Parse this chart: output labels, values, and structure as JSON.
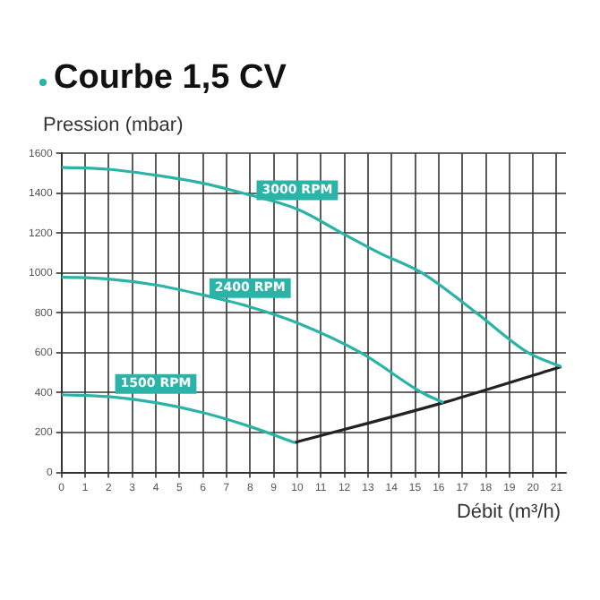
{
  "chart_data": {
    "type": "line",
    "title": "Courbe 1,5 CV",
    "ylabel": "Pression (mbar)",
    "xlabel": "Débit (m³/h)",
    "series": [
      {
        "name": "3000 RPM",
        "color": "#2ab3a6",
        "x": [
          0,
          2,
          4,
          6,
          7.7,
          10,
          11.9,
          13.5,
          15.3,
          17.6,
          19.8,
          21.2
        ],
        "values": [
          1530,
          1520,
          1490,
          1450,
          1400,
          1320,
          1200,
          1100,
          1000,
          800,
          600,
          530
        ]
      },
      {
        "name": "2400 RPM",
        "color": "#2ab3a6",
        "x": [
          0,
          2,
          4,
          6,
          8,
          10,
          12.7,
          15.3,
          16.2
        ],
        "values": [
          980,
          970,
          940,
          890,
          830,
          750,
          600,
          400,
          350
        ]
      },
      {
        "name": "1500 RPM",
        "color": "#2ab3a6",
        "x": [
          0,
          2,
          4,
          6,
          8,
          9.9
        ],
        "values": [
          390,
          380,
          350,
          300,
          230,
          150
        ]
      },
      {
        "color": "#222222",
        "x": [
          9.9,
          16.2,
          21.2
        ],
        "values": [
          150,
          350,
          530
        ]
      }
    ],
    "xlim": [
      0,
      21.4
    ],
    "xticks": [
      0,
      1,
      2,
      3,
      4,
      5,
      6,
      7,
      8,
      9,
      10,
      11,
      12,
      13,
      14,
      15,
      16,
      17,
      18,
      19,
      20,
      21
    ],
    "ylim": [
      0,
      1600
    ],
    "yticks": [
      0,
      200,
      400,
      600,
      800,
      1000,
      1200,
      1400,
      1600
    ],
    "grid": true,
    "legend": false,
    "marker": "none",
    "line_style": "solid"
  }
}
